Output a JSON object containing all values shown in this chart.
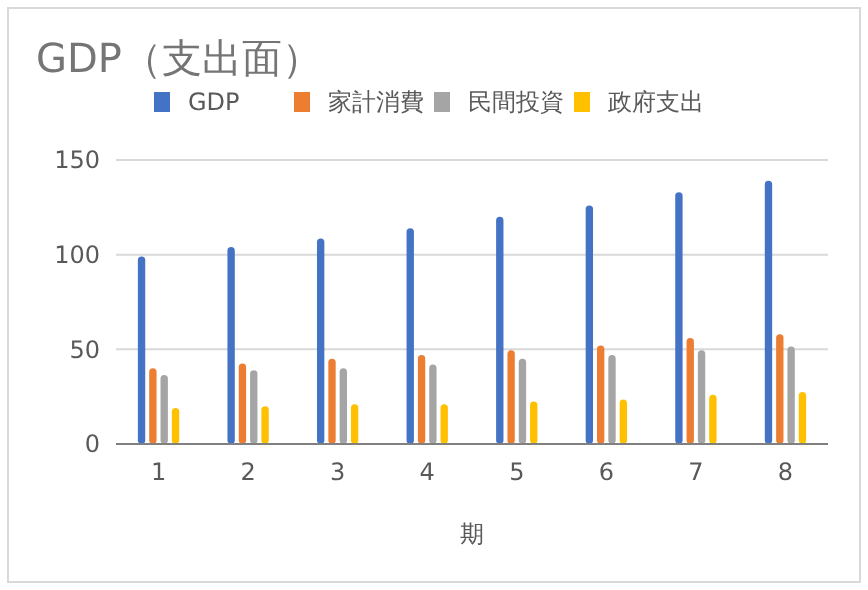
{
  "chart_data": {
    "type": "bar",
    "title": "GDP（支出面）",
    "xlabel": "期",
    "categories": [
      "1",
      "2",
      "3",
      "4",
      "5",
      "6",
      "7",
      "8"
    ],
    "series": [
      {
        "name": "GDP",
        "color": "#4472c4",
        "values": [
          99,
          104,
          108.5,
          114,
          120,
          126,
          133,
          139
        ]
      },
      {
        "name": "家計消費",
        "color": "#ed7d31",
        "values": [
          40,
          42.5,
          45,
          47,
          49.5,
          52,
          56,
          58
        ]
      },
      {
        "name": "民間投資",
        "color": "#a5a5a5",
        "values": [
          36.5,
          39,
          40,
          42,
          45,
          47,
          49.5,
          51.5
        ]
      },
      {
        "name": "政府支出",
        "color": "#ffc000",
        "values": [
          19,
          20,
          21,
          21,
          22.5,
          23.5,
          26,
          27.5
        ]
      }
    ],
    "ylim": [
      0,
      150
    ],
    "yticks": [
      0,
      50,
      100,
      150
    ],
    "grid": "y",
    "legend": "top"
  }
}
